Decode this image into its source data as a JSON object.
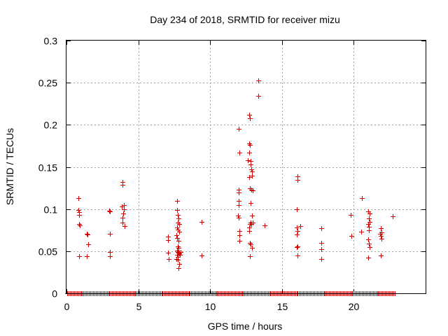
{
  "chart_data": {
    "type": "scatter",
    "title": "Day 234 of 2018, SRMTID for receiver mizu",
    "xlabel": "GPS time / hours",
    "ylabel": "SRMTID / TECUs",
    "xlim": [
      0,
      25
    ],
    "ylim": [
      0,
      0.3
    ],
    "x_ticks": [
      0,
      5,
      10,
      15,
      20
    ],
    "y_ticks": [
      0,
      0.05,
      0.1,
      0.15,
      0.2,
      0.25,
      0.3
    ],
    "x_tick_labels": [
      "0",
      "5",
      "10",
      "15",
      "20"
    ],
    "y_tick_labels": [
      "0",
      "0.05",
      "0.1",
      "0.15",
      "0.2",
      "0.25",
      "0.3"
    ],
    "grid": true,
    "marker": "+",
    "color": "#dd0000",
    "series": [
      {
        "name": "SRMTID",
        "points": [
          [
            0.85,
            0.113
          ],
          [
            0.85,
            0.099
          ],
          [
            0.87,
            0.096
          ],
          [
            0.9,
            0.093
          ],
          [
            0.88,
            0.082
          ],
          [
            0.92,
            0.081
          ],
          [
            0.86,
            0.044
          ],
          [
            1.4,
            0.071
          ],
          [
            1.45,
            0.07
          ],
          [
            1.5,
            0.058
          ],
          [
            1.4,
            0.044
          ],
          [
            2.95,
            0.098
          ],
          [
            3.0,
            0.097
          ],
          [
            3.0,
            0.071
          ],
          [
            3.0,
            0.049
          ],
          [
            3.0,
            0.044
          ],
          [
            3.9,
            0.132
          ],
          [
            3.9,
            0.129
          ],
          [
            3.85,
            0.103
          ],
          [
            4.0,
            0.105
          ],
          [
            4.0,
            0.1
          ],
          [
            3.95,
            0.095
          ],
          [
            3.9,
            0.09
          ],
          [
            3.9,
            0.084
          ],
          [
            4.05,
            0.08
          ],
          [
            7.05,
            0.067
          ],
          [
            7.05,
            0.063
          ],
          [
            7.05,
            0.048
          ],
          [
            7.1,
            0.041
          ],
          [
            7.7,
            0.11
          ],
          [
            7.7,
            0.099
          ],
          [
            7.75,
            0.093
          ],
          [
            7.8,
            0.089
          ],
          [
            7.75,
            0.084
          ],
          [
            7.85,
            0.082
          ],
          [
            7.7,
            0.078
          ],
          [
            7.75,
            0.076
          ],
          [
            7.85,
            0.073
          ],
          [
            7.65,
            0.069
          ],
          [
            7.7,
            0.066
          ],
          [
            7.8,
            0.062
          ],
          [
            7.75,
            0.056
          ],
          [
            7.8,
            0.054
          ],
          [
            7.7,
            0.051
          ],
          [
            7.75,
            0.049
          ],
          [
            7.8,
            0.048
          ],
          [
            7.85,
            0.047
          ],
          [
            7.9,
            0.046
          ],
          [
            7.95,
            0.049
          ],
          [
            7.7,
            0.046
          ],
          [
            7.75,
            0.043
          ],
          [
            7.65,
            0.041
          ],
          [
            7.75,
            0.04
          ],
          [
            7.85,
            0.035
          ],
          [
            7.8,
            0.03
          ],
          [
            9.4,
            0.085
          ],
          [
            9.4,
            0.045
          ],
          [
            12.0,
            0.195
          ],
          [
            12.05,
            0.167
          ],
          [
            12.0,
            0.123
          ],
          [
            12.0,
            0.12
          ],
          [
            12.0,
            0.11
          ],
          [
            12.0,
            0.105
          ],
          [
            11.95,
            0.092
          ],
          [
            12.0,
            0.09
          ],
          [
            12.05,
            0.074
          ],
          [
            12.05,
            0.069
          ],
          [
            12.05,
            0.062
          ],
          [
            12.7,
            0.212
          ],
          [
            12.75,
            0.208
          ],
          [
            12.7,
            0.178
          ],
          [
            12.75,
            0.176
          ],
          [
            12.7,
            0.167
          ],
          [
            12.6,
            0.158
          ],
          [
            12.8,
            0.157
          ],
          [
            12.8,
            0.153
          ],
          [
            12.85,
            0.147
          ],
          [
            12.9,
            0.145
          ],
          [
            12.9,
            0.14
          ],
          [
            12.7,
            0.138
          ],
          [
            12.75,
            0.125
          ],
          [
            12.85,
            0.123
          ],
          [
            12.95,
            0.122
          ],
          [
            12.8,
            0.107
          ],
          [
            12.9,
            0.092
          ],
          [
            12.8,
            0.084
          ],
          [
            12.95,
            0.084
          ],
          [
            12.85,
            0.082
          ],
          [
            12.75,
            0.082
          ],
          [
            12.7,
            0.078
          ],
          [
            12.7,
            0.074
          ],
          [
            12.75,
            0.06
          ],
          [
            12.8,
            0.058
          ],
          [
            12.9,
            0.054
          ],
          [
            12.75,
            0.044
          ],
          [
            13.35,
            0.253
          ],
          [
            13.35,
            0.234
          ],
          [
            13.8,
            0.081
          ],
          [
            16.1,
            0.139
          ],
          [
            16.1,
            0.135
          ],
          [
            16.05,
            0.1
          ],
          [
            16.05,
            0.078
          ],
          [
            16.1,
            0.074
          ],
          [
            16.05,
            0.07
          ],
          [
            16.1,
            0.056
          ],
          [
            16.05,
            0.055
          ],
          [
            16.1,
            0.045
          ],
          [
            16.3,
            0.08
          ],
          [
            17.75,
            0.077
          ],
          [
            17.75,
            0.06
          ],
          [
            17.75,
            0.052
          ],
          [
            17.75,
            0.041
          ],
          [
            19.8,
            0.093
          ],
          [
            19.85,
            0.068
          ],
          [
            20.55,
            0.113
          ],
          [
            20.5,
            0.073
          ],
          [
            21.0,
            0.097
          ],
          [
            21.1,
            0.095
          ],
          [
            21.05,
            0.089
          ],
          [
            21.1,
            0.085
          ],
          [
            21.0,
            0.082
          ],
          [
            21.05,
            0.079
          ],
          [
            21.05,
            0.075
          ],
          [
            21.0,
            0.064
          ],
          [
            21.05,
            0.059
          ],
          [
            21.1,
            0.055
          ],
          [
            21.0,
            0.042
          ],
          [
            21.9,
            0.077
          ],
          [
            21.95,
            0.072
          ],
          [
            21.85,
            0.071
          ],
          [
            21.9,
            0.068
          ],
          [
            21.95,
            0.065
          ],
          [
            21.9,
            0.045
          ],
          [
            22.7,
            0.091
          ]
        ],
        "baseline": {
          "y": 0,
          "x_from": 0.05,
          "x_to": 22.85,
          "step": 0.095
        }
      }
    ]
  }
}
